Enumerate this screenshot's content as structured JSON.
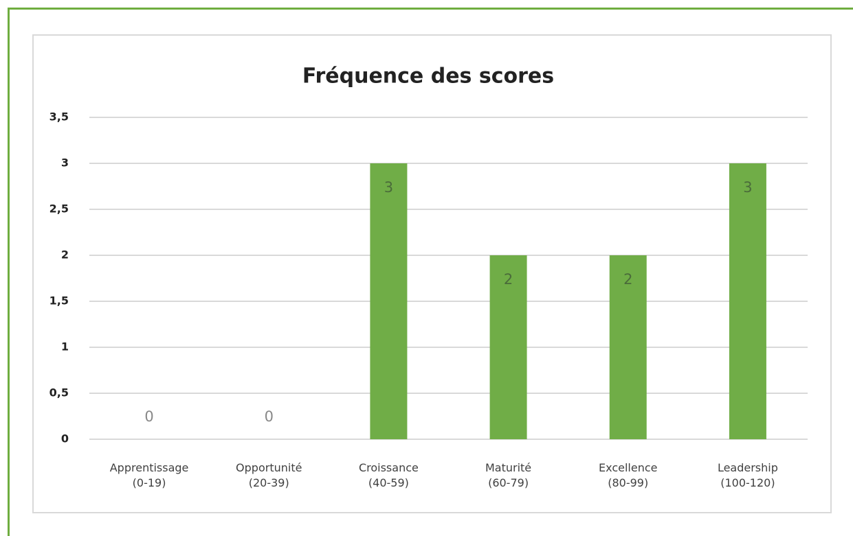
{
  "chart_data": {
    "type": "bar",
    "title": "Fréquence des scores",
    "categories": [
      "Apprentissage\n(0-19)",
      "Opportunité\n(20-39)",
      "Croissance\n(40-59)",
      "Maturité\n(60-79)",
      "Excellence\n(80-99)",
      "Leadership\n(100-120)"
    ],
    "values": [
      0,
      0,
      3,
      2,
      2,
      3
    ],
    "color": "#70ad47",
    "ylim": [
      0,
      3.5
    ],
    "yticks": [
      0,
      {
        "value": 0.5,
        "label": "0,5"
      },
      1,
      {
        "value": 1.5,
        "label": "1,5"
      },
      2,
      {
        "value": 2.5,
        "label": "2,5"
      },
      3,
      {
        "value": 3.5,
        "label": "3,5"
      }
    ],
    "grid": true
  }
}
